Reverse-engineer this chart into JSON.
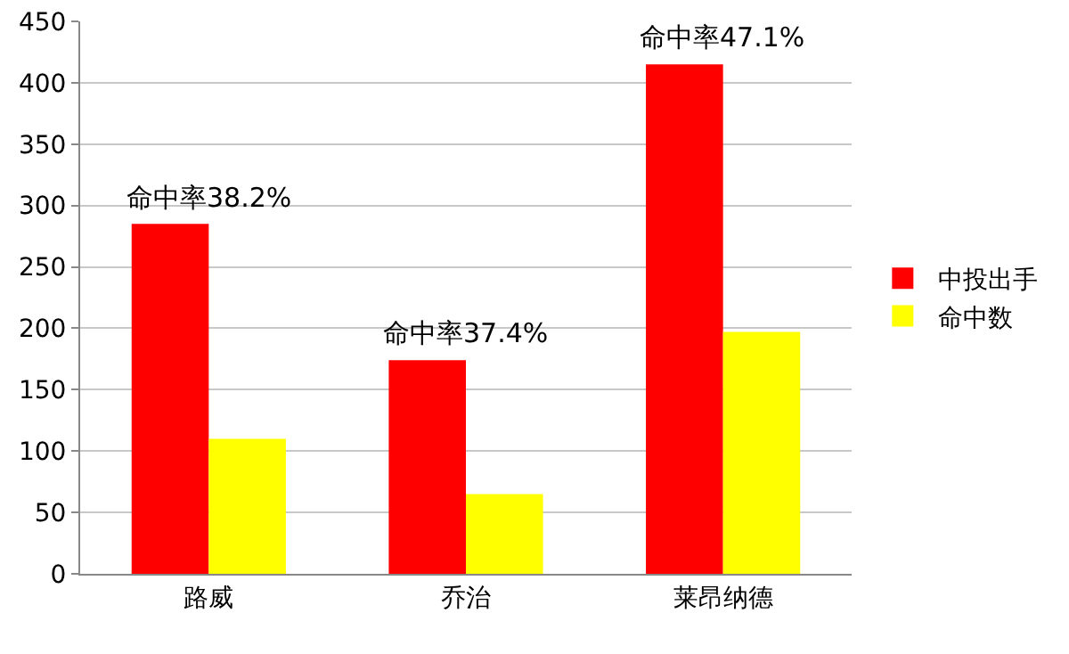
{
  "chart_data": {
    "type": "bar",
    "categories": [
      "路威",
      "乔治",
      "莱昂纳德"
    ],
    "series": [
      {
        "name": "中投出手",
        "color": "#ff0000",
        "values": [
          285,
          174,
          415
        ]
      },
      {
        "name": "命中数",
        "color": "#ffff00",
        "values": [
          110,
          65,
          197
        ]
      }
    ],
    "ylim": [
      0,
      450
    ],
    "yticks": [
      0,
      50,
      100,
      150,
      200,
      250,
      300,
      350,
      400,
      450
    ],
    "grid": "y",
    "legend": "right",
    "annotations": [
      {
        "text": "命中率38.2%",
        "x": "路威",
        "y": 285
      },
      {
        "text": "命中率37.4%",
        "x": "乔治",
        "y": 174
      },
      {
        "text": "命中率47.1%",
        "x": "莱昂纳德",
        "y": 415
      }
    ]
  }
}
